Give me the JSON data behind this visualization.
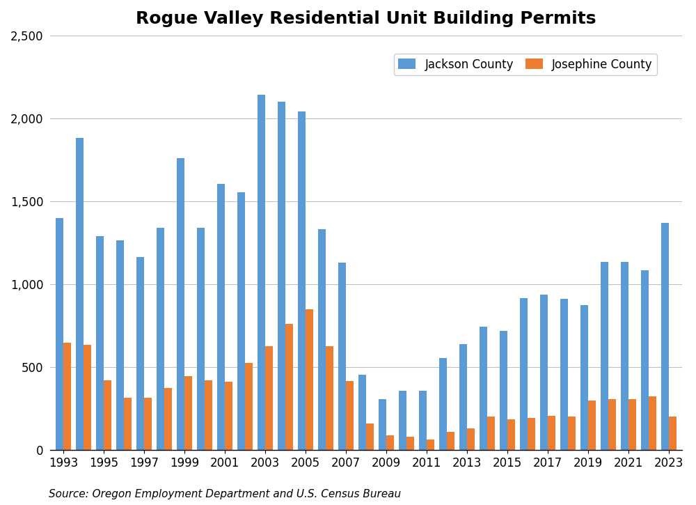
{
  "title": "Rogue Valley Residential Unit Building Permits",
  "source": "Source: Oregon Employment Department and U.S. Census Bureau",
  "years": [
    1993,
    1994,
    1995,
    1996,
    1997,
    1998,
    1999,
    2000,
    2001,
    2002,
    2003,
    2004,
    2005,
    2006,
    2007,
    2008,
    2009,
    2010,
    2011,
    2012,
    2013,
    2014,
    2015,
    2016,
    2017,
    2018,
    2019,
    2020,
    2021,
    2022,
    2023
  ],
  "jackson_county": [
    1400,
    1880,
    1290,
    1265,
    1165,
    1340,
    1760,
    1340,
    1605,
    1555,
    2140,
    2100,
    2040,
    1330,
    1130,
    455,
    305,
    355,
    355,
    555,
    640,
    745,
    720,
    915,
    935,
    910,
    875,
    1135,
    1135,
    1085,
    1370
  ],
  "josephine_county": [
    645,
    635,
    420,
    315,
    315,
    375,
    445,
    420,
    410,
    525,
    625,
    760,
    850,
    625,
    415,
    160,
    90,
    80,
    65,
    110,
    130,
    200,
    185,
    195,
    205,
    200,
    300,
    305,
    305,
    325,
    200
  ],
  "jackson_color": "#5B9BD5",
  "josephine_color": "#ED7D31",
  "ylim": [
    0,
    2500
  ],
  "yticks": [
    0,
    500,
    1000,
    1500,
    2000,
    2500
  ],
  "title_fontsize": 18,
  "tick_fontsize": 12,
  "legend_fontsize": 12,
  "source_fontsize": 11,
  "bar_width": 0.38
}
